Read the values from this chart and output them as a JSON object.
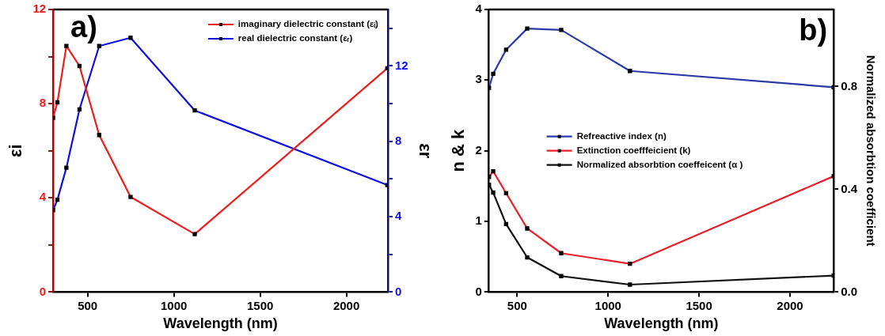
{
  "chart_data": [
    {
      "type": "line",
      "xlabel": "Wavelength (nm)",
      "ylabel": "εi",
      "y2label": "εr",
      "annotations": [
        "a)"
      ],
      "xlim": [
        300,
        2240
      ],
      "xticks": [
        500,
        1000,
        1500,
        2000
      ],
      "ylim": [
        0,
        12
      ],
      "yticks": [
        0,
        {
          "value": 2,
          "label": null
        },
        4,
        {
          "value": 6,
          "label": null
        },
        8,
        {
          "value": 10,
          "label": null
        },
        12
      ],
      "y2lim": [
        0,
        15
      ],
      "y2ticks": [
        0,
        {
          "value": 2,
          "label": null
        },
        4,
        {
          "value": 6,
          "label": null
        },
        8,
        {
          "value": 10,
          "label": null
        },
        12,
        {
          "value": 14,
          "label": null
        }
      ],
      "legend": "top right",
      "grid": false,
      "marker": "square",
      "line_style": "solid",
      "series": [
        {
          "name": "imaginary dielectric constant (εᵢ)",
          "color": "#ee1c1c",
          "x": [
            300,
            325,
            377,
            453,
            567,
            749,
            1121,
            2237
          ],
          "values": [
            7.4,
            8.06,
            10.45,
            9.6,
            6.67,
            4.04,
            2.46,
            9.5
          ]
        },
        {
          "name": "real dielectric constant (εᵣ)",
          "color": "#1010e0",
          "axis": "y2",
          "x": [
            300,
            325,
            377,
            453,
            567,
            749,
            1121,
            2237
          ],
          "values": [
            4.35,
            4.9,
            6.6,
            9.7,
            13.06,
            13.5,
            9.64,
            5.68
          ]
        }
      ]
    },
    {
      "type": "line",
      "xlabel": "Wavelength (nm)",
      "ylabel": "n & k",
      "y2label": "Normalized absorbtion coefficient",
      "annotations": [
        "b)"
      ],
      "xlim": [
        345,
        2240
      ],
      "xticks": [
        500,
        1000,
        1500,
        2000
      ],
      "ylim": [
        0,
        4
      ],
      "yticks": [
        0,
        1,
        2,
        3,
        4
      ],
      "y2lim": [
        0,
        1.1
      ],
      "y2ticks": [
        {
          "value": 0,
          "label": "0.0"
        },
        0.4,
        0.8
      ],
      "legend": "center",
      "grid": false,
      "marker": "square",
      "line_style": "solid",
      "series": [
        {
          "name": "Refreactive index (n)",
          "color": "#2b3aa8",
          "x": [
            345,
            368,
            439,
            555,
            742,
            1120,
            2240
          ],
          "values": [
            2.89,
            3.09,
            3.43,
            3.73,
            3.71,
            3.13,
            2.9
          ]
        },
        {
          "name": "Extinction coefffeicient (k)",
          "color": "#e8202a",
          "x": [
            345,
            368,
            439,
            555,
            742,
            1120,
            2240
          ],
          "values": [
            1.63,
            1.71,
            1.4,
            0.9,
            0.55,
            0.4,
            1.64
          ]
        },
        {
          "name": "Normalized absorbtion coeffeicent (α )",
          "color": "#111111",
          "axis": "y2",
          "x": [
            345,
            368,
            439,
            555,
            742,
            1120,
            2240
          ],
          "values": [
            0.418,
            0.387,
            0.265,
            0.135,
            0.062,
            0.029,
            0.064
          ]
        }
      ]
    }
  ]
}
